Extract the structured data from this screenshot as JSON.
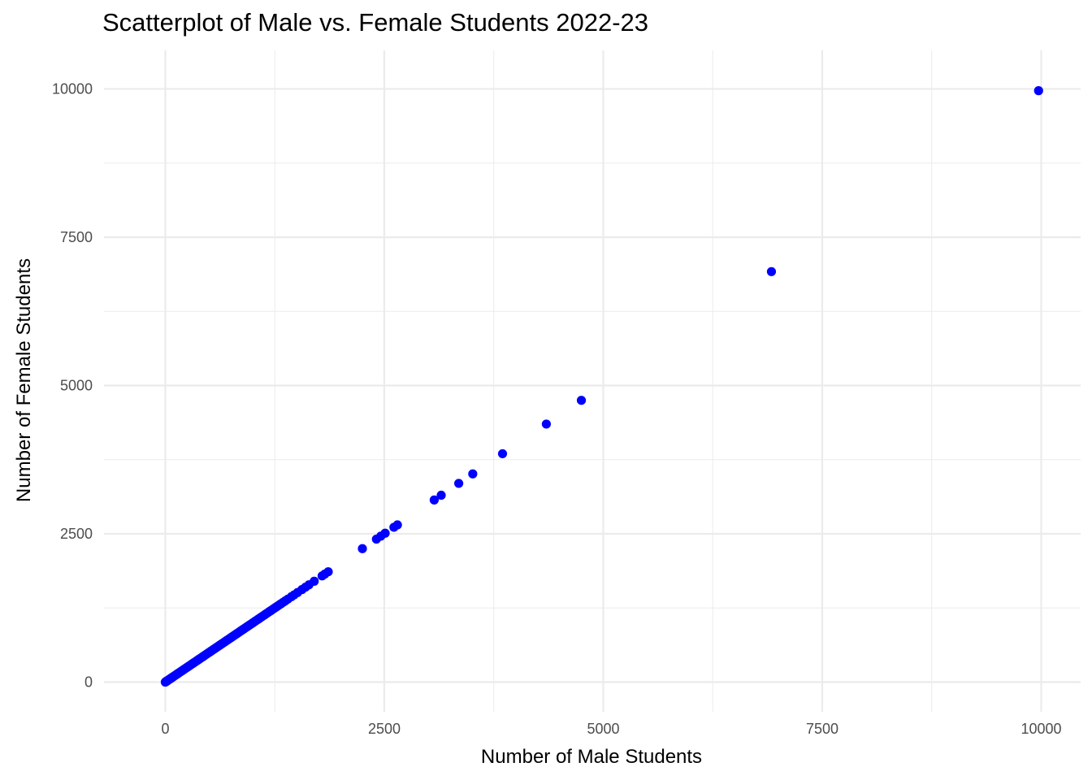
{
  "chart_data": {
    "type": "scatter",
    "title": "Scatterplot of Male vs. Female Students 2022-23",
    "xlabel": "Number of Male Students",
    "ylabel": "Number of Female Students",
    "xlim": [
      -700,
      10450
    ],
    "ylim": [
      -500,
      10650
    ],
    "x_ticks": [
      0,
      2500,
      5000,
      7500,
      10000
    ],
    "y_ticks": [
      0,
      2500,
      5000,
      7500,
      10000
    ],
    "x_minor": [
      1250,
      3750,
      6250,
      8750
    ],
    "y_minor": [
      1250,
      3750,
      6250,
      8750
    ],
    "grid": true,
    "point_color": "#0000ff",
    "grid_color": "#ebebeb",
    "points": [
      [
        0,
        0
      ],
      [
        5,
        5
      ],
      [
        10,
        10
      ],
      [
        15,
        15
      ],
      [
        20,
        20
      ],
      [
        25,
        25
      ],
      [
        30,
        30
      ],
      [
        40,
        40
      ],
      [
        50,
        50
      ],
      [
        60,
        60
      ],
      [
        70,
        70
      ],
      [
        80,
        80
      ],
      [
        90,
        90
      ],
      [
        100,
        100
      ],
      [
        115,
        115
      ],
      [
        130,
        130
      ],
      [
        145,
        145
      ],
      [
        160,
        160
      ],
      [
        175,
        175
      ],
      [
        190,
        190
      ],
      [
        205,
        205
      ],
      [
        220,
        220
      ],
      [
        235,
        235
      ],
      [
        250,
        250
      ],
      [
        265,
        265
      ],
      [
        280,
        280
      ],
      [
        295,
        295
      ],
      [
        310,
        310
      ],
      [
        325,
        325
      ],
      [
        340,
        340
      ],
      [
        355,
        355
      ],
      [
        370,
        370
      ],
      [
        385,
        385
      ],
      [
        400,
        400
      ],
      [
        415,
        415
      ],
      [
        430,
        430
      ],
      [
        445,
        445
      ],
      [
        460,
        460
      ],
      [
        475,
        475
      ],
      [
        490,
        490
      ],
      [
        505,
        505
      ],
      [
        520,
        520
      ],
      [
        535,
        535
      ],
      [
        550,
        550
      ],
      [
        565,
        565
      ],
      [
        580,
        580
      ],
      [
        595,
        595
      ],
      [
        610,
        610
      ],
      [
        625,
        625
      ],
      [
        640,
        640
      ],
      [
        655,
        655
      ],
      [
        670,
        670
      ],
      [
        685,
        685
      ],
      [
        700,
        700
      ],
      [
        715,
        715
      ],
      [
        730,
        730
      ],
      [
        745,
        745
      ],
      [
        760,
        760
      ],
      [
        775,
        775
      ],
      [
        790,
        790
      ],
      [
        805,
        805
      ],
      [
        820,
        820
      ],
      [
        835,
        835
      ],
      [
        850,
        850
      ],
      [
        865,
        865
      ],
      [
        880,
        880
      ],
      [
        895,
        895
      ],
      [
        910,
        910
      ],
      [
        925,
        925
      ],
      [
        940,
        940
      ],
      [
        955,
        955
      ],
      [
        970,
        970
      ],
      [
        985,
        985
      ],
      [
        1000,
        1000
      ],
      [
        1020,
        1020
      ],
      [
        1040,
        1040
      ],
      [
        1060,
        1060
      ],
      [
        1080,
        1080
      ],
      [
        1100,
        1100
      ],
      [
        1120,
        1120
      ],
      [
        1140,
        1140
      ],
      [
        1160,
        1160
      ],
      [
        1180,
        1180
      ],
      [
        1200,
        1200
      ],
      [
        1220,
        1220
      ],
      [
        1240,
        1240
      ],
      [
        1260,
        1260
      ],
      [
        1280,
        1280
      ],
      [
        1300,
        1300
      ],
      [
        1320,
        1320
      ],
      [
        1345,
        1345
      ],
      [
        1370,
        1370
      ],
      [
        1400,
        1400
      ],
      [
        1440,
        1440
      ],
      [
        1470,
        1470
      ],
      [
        1510,
        1510
      ],
      [
        1560,
        1560
      ],
      [
        1600,
        1600
      ],
      [
        1640,
        1640
      ],
      [
        1700,
        1700
      ],
      [
        1790,
        1790
      ],
      [
        1820,
        1820
      ],
      [
        1860,
        1860
      ],
      [
        2250,
        2250
      ],
      [
        2410,
        2410
      ],
      [
        2460,
        2460
      ],
      [
        2510,
        2510
      ],
      [
        2610,
        2610
      ],
      [
        2650,
        2650
      ],
      [
        3070,
        3070
      ],
      [
        3150,
        3150
      ],
      [
        3350,
        3350
      ],
      [
        3510,
        3510
      ],
      [
        3850,
        3850
      ],
      [
        4350,
        4350
      ],
      [
        4750,
        4750
      ],
      [
        6920,
        6920
      ],
      [
        9970,
        9970
      ]
    ]
  }
}
